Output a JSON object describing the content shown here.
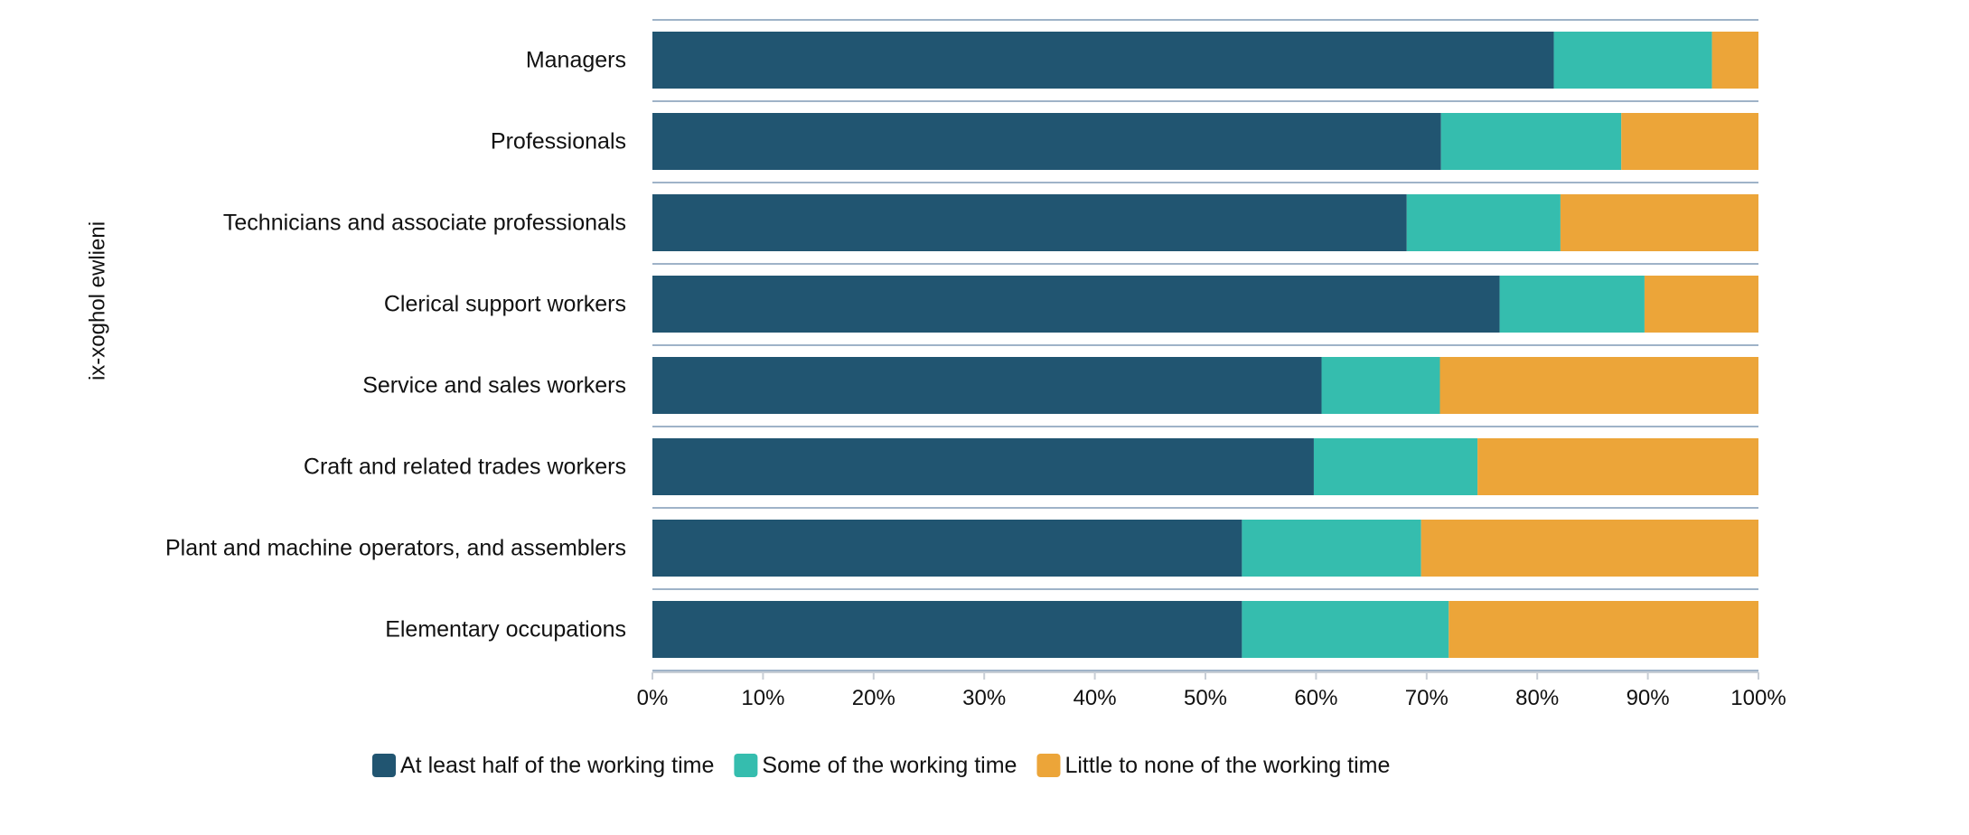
{
  "chart_data": {
    "type": "bar",
    "orientation": "horizontal",
    "stacked": "percent",
    "title": "",
    "xlabel": "",
    "ylabel": "ix-xoghol ewlieni",
    "xlim": [
      0,
      100
    ],
    "x_ticks": [
      "0%",
      "10%",
      "20%",
      "30%",
      "40%",
      "50%",
      "60%",
      "70%",
      "80%",
      "90%",
      "100%"
    ],
    "grid": false,
    "legend_position": "bottom",
    "categories": [
      "Managers",
      "Professionals",
      "Technicians and associate professionals",
      "Clerical support workers",
      "Service and sales workers",
      "Craft and related trades workers",
      "Plant and machine operators, and assemblers",
      "Elementary occupations"
    ],
    "series": [
      {
        "name": "At least half of the working time",
        "color": "#215571",
        "values": [
          81.5,
          71.3,
          68.2,
          76.6,
          60.5,
          59.8,
          53.3,
          53.3
        ]
      },
      {
        "name": "Some of the working time",
        "color": "#35bdae",
        "values": [
          14.3,
          16.3,
          13.9,
          13.1,
          10.7,
          14.8,
          16.2,
          18.7
        ]
      },
      {
        "name": "Little to none of the working time",
        "color": "#eca539",
        "values": [
          4.2,
          12.4,
          17.9,
          10.3,
          28.8,
          25.4,
          30.5,
          28.0
        ]
      }
    ]
  }
}
